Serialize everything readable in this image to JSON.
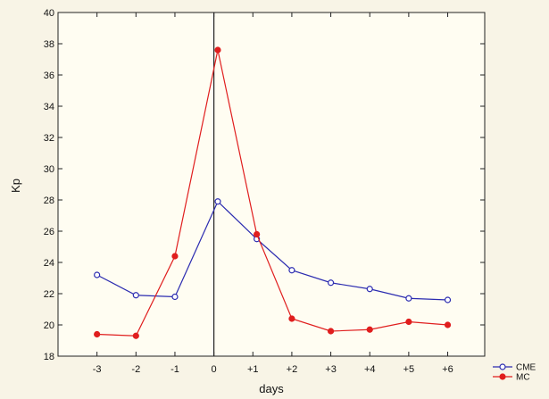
{
  "chart_data": {
    "type": "line",
    "categories": [
      "-3",
      "-2",
      "-1",
      "0",
      "+1",
      "+2",
      "+3",
      "+4",
      "+5",
      "+6"
    ],
    "x": [
      -3,
      -2,
      -1,
      0.1,
      1.1,
      2,
      3,
      4,
      5,
      6
    ],
    "series": [
      {
        "name": "CME",
        "color": "#2b2bb0",
        "marker": "open-circle",
        "values": [
          23.2,
          21.9,
          21.8,
          27.9,
          25.5,
          23.5,
          22.7,
          22.3,
          21.7,
          21.6
        ]
      },
      {
        "name": "MC",
        "color": "#e01e1e",
        "marker": "filled-circle",
        "values": [
          19.4,
          19.3,
          24.4,
          37.6,
          25.8,
          20.4,
          19.6,
          19.7,
          20.2,
          20.0
        ]
      }
    ],
    "xticks": [
      "-3",
      "-2",
      "-1",
      "0",
      "+1",
      "+2",
      "+3",
      "+4",
      "+5",
      "+6"
    ],
    "xtick_values": [
      -3,
      -2,
      -1,
      0,
      1,
      2,
      3,
      4,
      5,
      6
    ],
    "yticks": [
      "18",
      "20",
      "22",
      "24",
      "26",
      "28",
      "30",
      "32",
      "34",
      "36",
      "38",
      "40"
    ],
    "ytick_values": [
      18,
      20,
      22,
      24,
      26,
      28,
      30,
      32,
      34,
      36,
      38,
      40
    ],
    "xlabel": "days",
    "ylabel": "Kp",
    "title": "",
    "xlim": [
      -4,
      6.95
    ],
    "ylim": [
      18,
      40
    ],
    "vertical_marker_x": 0,
    "grid": false,
    "legend_position": "bottom-right outside"
  }
}
